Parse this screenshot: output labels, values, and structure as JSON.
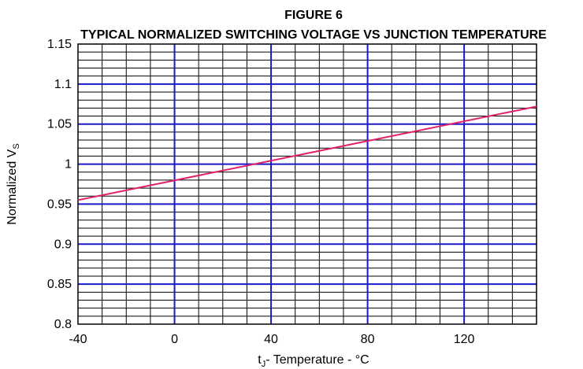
{
  "chart_data": {
    "type": "line",
    "figure_label": "FIGURE 6",
    "title": "TYPICAL NORMALIZED SWITCHING VOLTAGE  VS JUNCTION  TEMPERATURE",
    "xlabel_main": "t",
    "xlabel_sub": "J",
    "xlabel_rest": "- Temperature - °C",
    "ylabel_main": "Normalized V",
    "ylabel_sub": "S",
    "xlim": [
      -40,
      150
    ],
    "ylim": [
      0.8,
      1.15
    ],
    "x_ticks": [
      -40,
      0,
      40,
      80,
      120
    ],
    "x_tick_labels": [
      "-40",
      "0",
      "40",
      "80",
      "120"
    ],
    "y_ticks": [
      0.8,
      0.85,
      0.9,
      0.95,
      1.0,
      1.05,
      1.1,
      1.15
    ],
    "y_tick_labels": [
      "0.8",
      "0.85",
      "0.9",
      "0.95",
      "1",
      "1.05",
      "1.1",
      "1.15"
    ],
    "minor_x_step": 10,
    "minor_y_step": 0.01,
    "grid": true,
    "series": [
      {
        "x": [
          -40,
          150
        ],
        "y": [
          0.955,
          1.072
        ]
      }
    ],
    "colors": {
      "major_grid": "#1a1acc",
      "minor_grid": "#000000",
      "line": "#e0206a",
      "frame": "#000000"
    }
  }
}
